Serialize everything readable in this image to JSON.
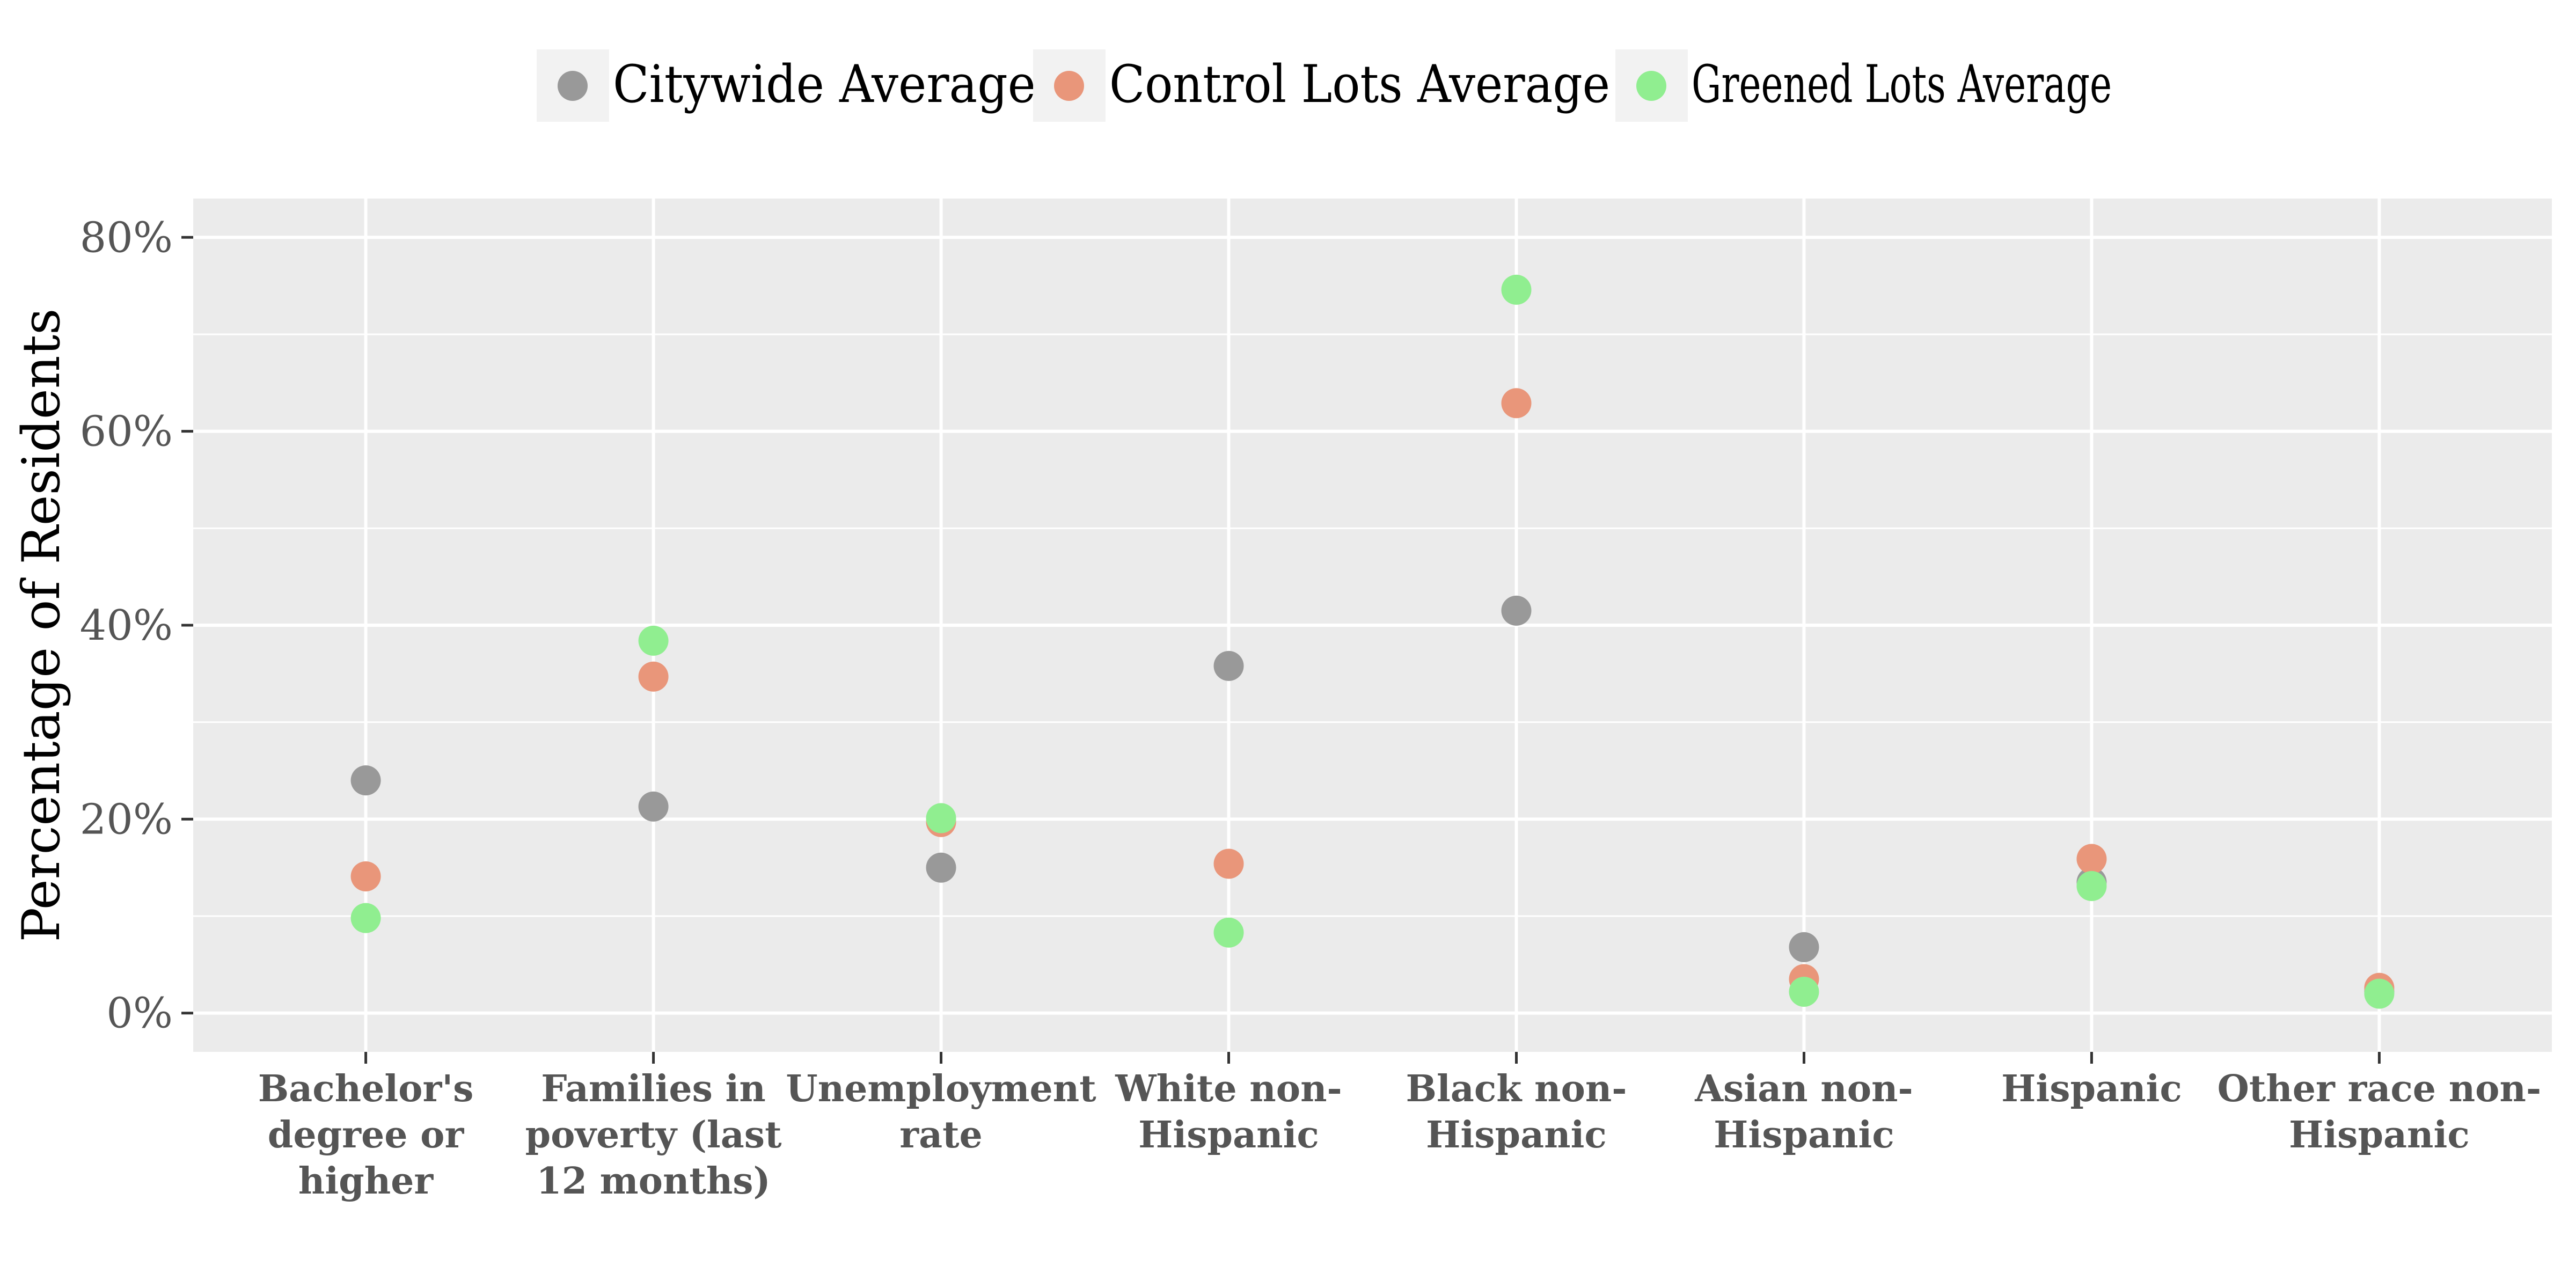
{
  "chart_data": {
    "type": "scatter",
    "title": "",
    "xlabel": "",
    "ylabel": "Percentage of Residents",
    "ylim": [
      -0.04,
      0.84
    ],
    "yticks": [
      0,
      0.2,
      0.4,
      0.6,
      0.8
    ],
    "ytick_labels": [
      "0%",
      "20%",
      "40%",
      "60%",
      "80%"
    ],
    "grid": true,
    "legend_position": "top",
    "categories": [
      [
        "Bachelor's",
        "degree or",
        "higher"
      ],
      [
        "Families in",
        "poverty (last",
        "12 months)"
      ],
      [
        "Unemployment",
        "rate"
      ],
      [
        "White non-",
        "Hispanic"
      ],
      [
        "Black non-",
        "Hispanic"
      ],
      [
        "Asian non-",
        "Hispanic"
      ],
      [
        "Hispanic"
      ],
      [
        "Other race non-",
        "Hispanic"
      ]
    ],
    "series": [
      {
        "name": "Citywide Average",
        "color": "#999999",
        "values": [
          0.24,
          0.213,
          0.15,
          0.358,
          0.415,
          0.068,
          0.135,
          0.022
        ]
      },
      {
        "name": "Control Lots Average",
        "color": "#E9967A",
        "values": [
          0.141,
          0.347,
          0.197,
          0.154,
          0.629,
          0.035,
          0.159,
          0.026
        ]
      },
      {
        "name": "Greened Lots Average",
        "color": "#90EE90",
        "values": [
          0.098,
          0.384,
          0.201,
          0.083,
          0.746,
          0.022,
          0.131,
          0.02
        ]
      }
    ]
  }
}
